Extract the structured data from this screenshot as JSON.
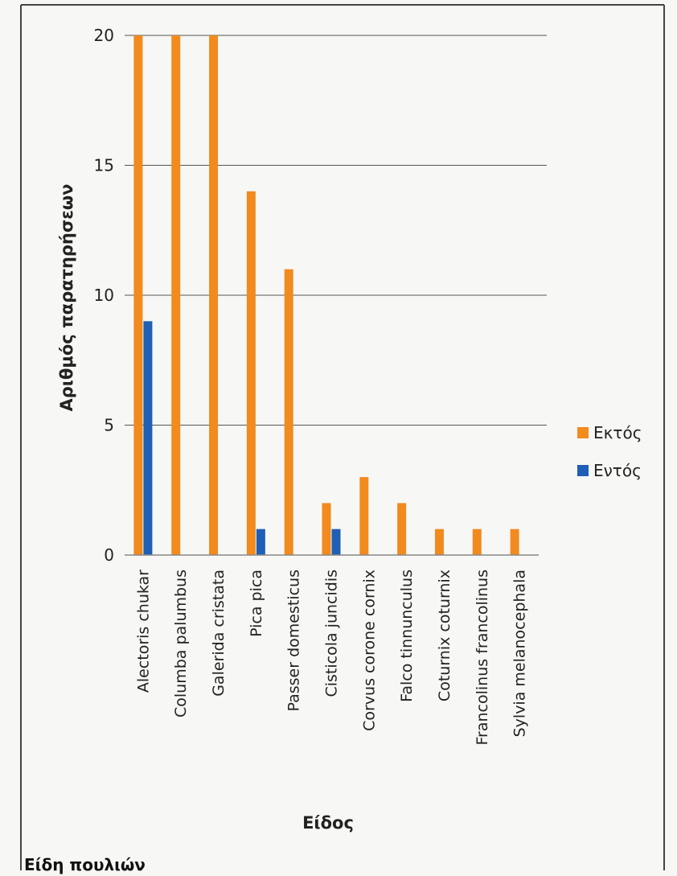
{
  "chart_data": {
    "type": "bar",
    "title": "",
    "xlabel": "Είδος",
    "ylabel": "Αριθμός παρατηρήσεων",
    "ylim": [
      0,
      20
    ],
    "yticks": [
      0,
      5,
      10,
      15,
      20
    ],
    "grid": true,
    "legend_position": "right",
    "categories": [
      "Alectoris chukar",
      "Columba palumbus",
      "Galerida cristata",
      "Pica pica",
      "Passer domesticus",
      "Cisticola juncidis",
      "Corvus corone cornix",
      "Falco tinnunculus",
      "Coturnix coturnix",
      "Francolinus francolinus",
      "Sylvia melanocephala"
    ],
    "series": [
      {
        "name": "Εκτός",
        "color": "#f28a1e",
        "values": [
          20,
          20,
          20,
          14,
          11,
          2,
          3,
          2,
          1,
          1,
          1
        ]
      },
      {
        "name": "Εντός",
        "color": "#1f5fb5",
        "values": [
          9,
          0,
          0,
          1,
          0,
          1,
          0,
          0,
          0,
          0,
          0
        ]
      }
    ]
  },
  "caption": "Είδη πουλιών"
}
